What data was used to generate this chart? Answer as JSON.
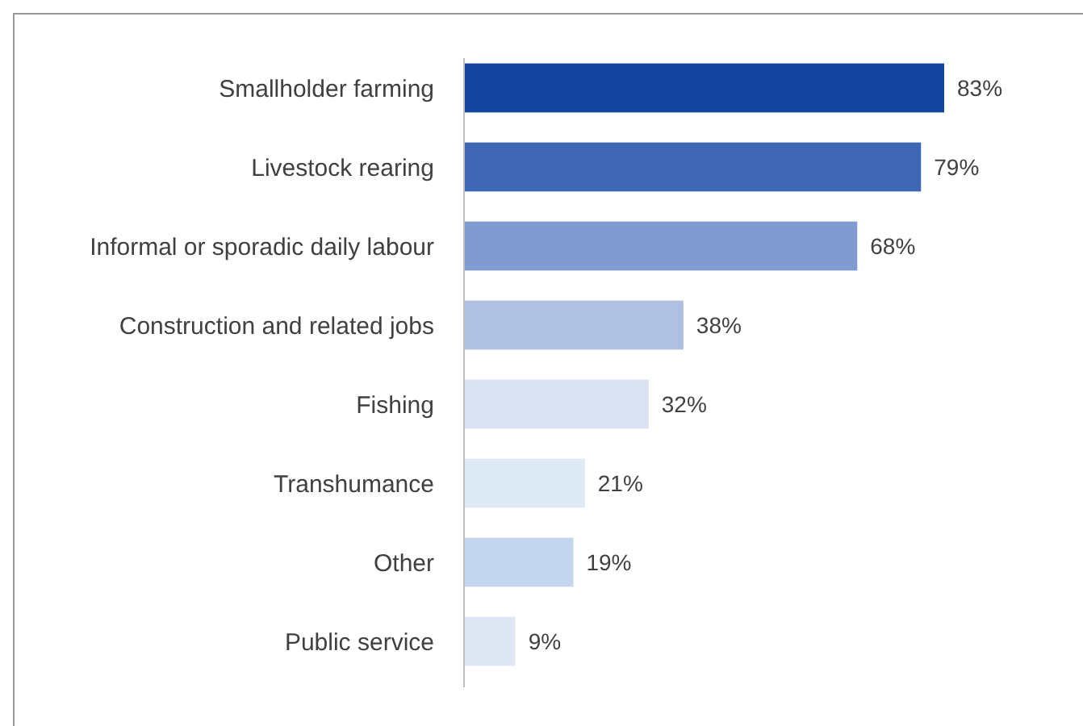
{
  "chart_data": {
    "type": "bar",
    "orientation": "horizontal",
    "categories": [
      "Smallholder farming",
      "Livestock rearing",
      "Informal or sporadic daily labour",
      "Construction and related jobs",
      "Fishing",
      "Transhumance",
      "Other",
      "Public service"
    ],
    "values": [
      83,
      79,
      68,
      38,
      32,
      21,
      19,
      9
    ],
    "value_labels": [
      "83%",
      "79%",
      "68%",
      "38%",
      "32%",
      "21%",
      "19%",
      "9%"
    ],
    "colors": [
      "#14469f",
      "#4067b4",
      "#7f9bd0",
      "#b0c0e2",
      "#d9e1f2",
      "#dfeaf7",
      "#c3d5ef",
      "#dfe7f5"
    ]
  }
}
